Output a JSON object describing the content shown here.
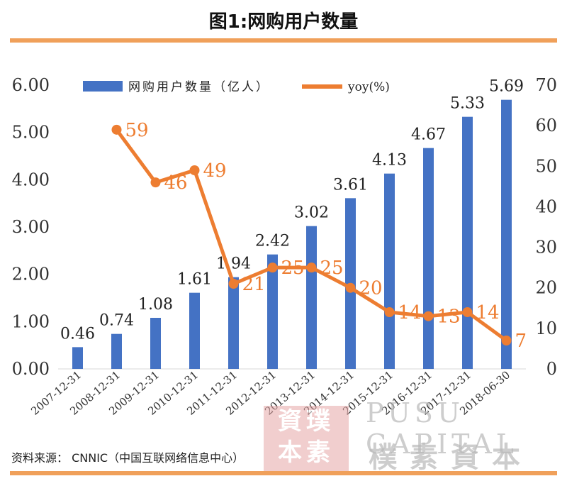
{
  "title": "图1:网购用户数量",
  "source": "资料来源： CNNIC（中国互联网络信息中心）",
  "watermark": {
    "seal": "資璞\n本素",
    "english": "PUSU CAPITAL",
    "chinese": "樸素資本"
  },
  "colors": {
    "bar": "#4472c4",
    "line": "#ed7d31",
    "rule": "#f0a05a",
    "grid": "#d9d9d9"
  },
  "chart_data": {
    "type": "bar",
    "categories": [
      "2007-12-31",
      "2008-12-31",
      "2009-12-31",
      "2010-12-31",
      "2011-12-31",
      "2012-12-31",
      "2013-12-31",
      "2014-12-31",
      "2015-12-31",
      "2016-12-31",
      "2017-12-31",
      "2018-06-30"
    ],
    "series": [
      {
        "name": "网购用户数量（亿人）",
        "type": "bar",
        "axis": "left",
        "values": [
          0.46,
          0.74,
          1.08,
          1.61,
          1.94,
          2.42,
          3.02,
          3.61,
          4.13,
          4.67,
          5.33,
          5.69
        ],
        "labels": [
          "0.46",
          "0.74",
          "1.08",
          "1.61",
          "1.94",
          "2.42",
          "3.02",
          "3.61",
          "4.13",
          "4.67",
          "5.33",
          "5.69"
        ]
      },
      {
        "name": "yoy(%)",
        "type": "line",
        "axis": "right",
        "values": [
          null,
          59,
          46,
          49,
          21,
          25,
          25,
          20,
          14,
          13,
          14,
          7
        ],
        "labels": [
          "",
          "59",
          "46",
          "49",
          "21",
          "25",
          "25",
          "20",
          "14",
          "13",
          "14",
          "7"
        ]
      }
    ],
    "y_left": {
      "min": 0,
      "max": 6,
      "ticks": [
        "0.00",
        "1.00",
        "2.00",
        "3.00",
        "4.00",
        "5.00",
        "6.00"
      ]
    },
    "y_right": {
      "min": 0,
      "max": 70,
      "ticks": [
        "0",
        "10",
        "20",
        "30",
        "40",
        "50",
        "60",
        "70"
      ]
    },
    "legend": {
      "placement": "top"
    },
    "grid": false
  }
}
